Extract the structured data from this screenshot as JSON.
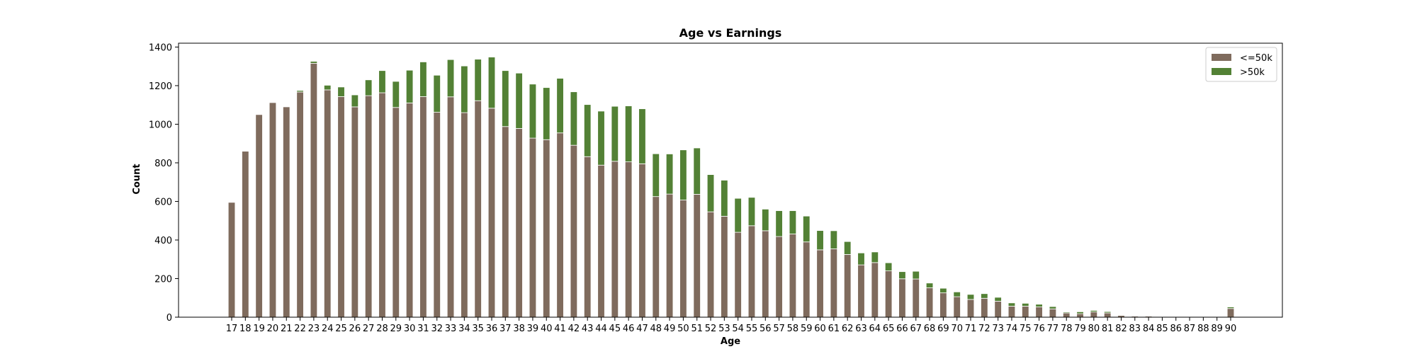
{
  "chart_data": {
    "type": "bar",
    "stacked": true,
    "title": "Age vs Earnings",
    "xlabel": "Age",
    "ylabel": "Count",
    "ylim": [
      0,
      1420
    ],
    "yticks": [
      0,
      200,
      400,
      600,
      800,
      1000,
      1200,
      1400
    ],
    "legend_position": "top-right",
    "categories": [
      "17",
      "18",
      "19",
      "20",
      "21",
      "22",
      "23",
      "24",
      "25",
      "26",
      "27",
      "28",
      "29",
      "30",
      "31",
      "32",
      "33",
      "34",
      "35",
      "36",
      "37",
      "38",
      "39",
      "40",
      "41",
      "42",
      "43",
      "44",
      "45",
      "46",
      "47",
      "48",
      "49",
      "50",
      "51",
      "52",
      "53",
      "54",
      "55",
      "56",
      "57",
      "58",
      "59",
      "60",
      "61",
      "62",
      "63",
      "64",
      "65",
      "66",
      "67",
      "68",
      "69",
      "70",
      "71",
      "72",
      "73",
      "74",
      "75",
      "76",
      "77",
      "78",
      "79",
      "80",
      "81",
      "82",
      "83",
      "84",
      "85",
      "86",
      "87",
      "88",
      "89",
      "90"
    ],
    "series": [
      {
        "name": "<=50k",
        "color": "#7f6b5d",
        "values": [
          595,
          860,
          1050,
          1112,
          1090,
          1167,
          1316,
          1178,
          1143,
          1090,
          1148,
          1163,
          1087,
          1110,
          1143,
          1062,
          1142,
          1060,
          1122,
          1083,
          988,
          978,
          928,
          920,
          955,
          891,
          832,
          788,
          808,
          805,
          795,
          625,
          638,
          607,
          637,
          546,
          523,
          440,
          474,
          448,
          418,
          431,
          390,
          349,
          354,
          325,
          271,
          283,
          240,
          199,
          198,
          152,
          126,
          106,
          92,
          98,
          83,
          57,
          57,
          53,
          43,
          22,
          18,
          27,
          22,
          9,
          5,
          5,
          2,
          2,
          1,
          3,
          3,
          45
        ]
      },
      {
        "name": ">50k",
        "color": "#538135",
        "values": [
          0,
          0,
          0,
          0,
          0,
          8,
          10,
          24,
          50,
          62,
          82,
          115,
          135,
          170,
          180,
          192,
          193,
          242,
          215,
          265,
          290,
          287,
          280,
          270,
          283,
          277,
          270,
          280,
          285,
          290,
          285,
          222,
          208,
          260,
          240,
          193,
          187,
          176,
          147,
          112,
          134,
          121,
          134,
          100,
          94,
          67,
          62,
          55,
          42,
          37,
          40,
          25,
          24,
          25,
          26,
          24,
          20,
          17,
          15,
          14,
          12,
          5,
          10,
          8,
          7,
          3,
          2,
          2,
          1,
          1,
          0,
          2,
          1,
          8
        ]
      }
    ]
  }
}
